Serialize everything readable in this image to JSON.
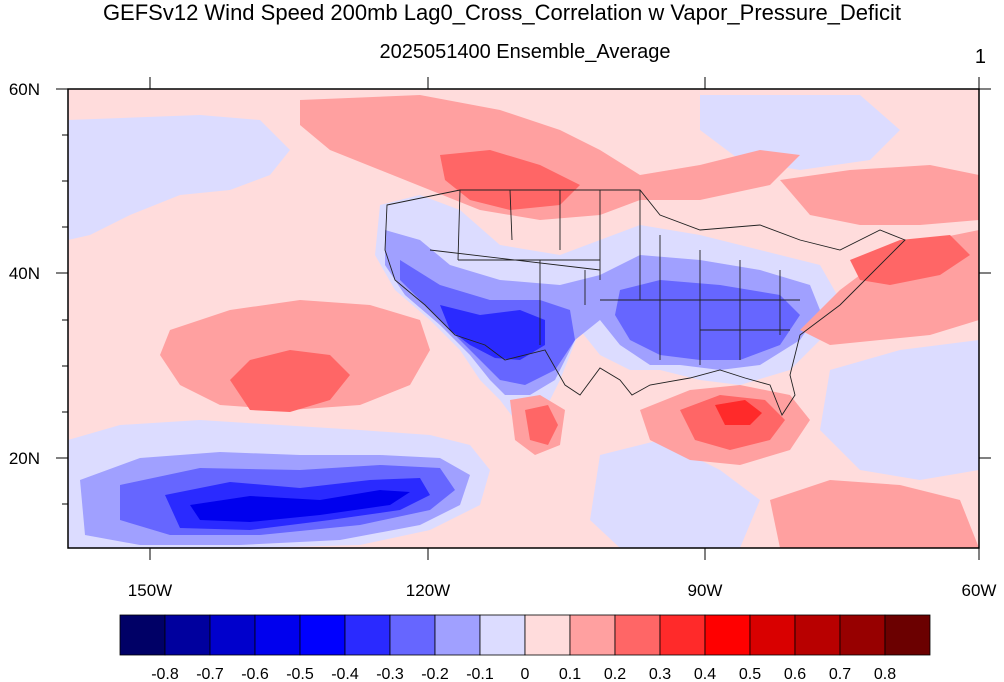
{
  "header": {
    "title": "GEFSv12 Wind Speed 200mb Lag0_Cross_Correlation w Vapor_Pressure_Deficit",
    "subtitle": "2025051400 Ensemble_Average",
    "corner_label": "1"
  },
  "axes": {
    "lat_ticks": [
      "60N",
      "40N",
      "20N"
    ],
    "lon_ticks": [
      "150W",
      "120W",
      "90W",
      "60W"
    ]
  },
  "colorbar": {
    "labels": [
      "-0.8",
      "-0.7",
      "-0.6",
      "-0.5",
      "-0.4",
      "-0.3",
      "-0.2",
      "-0.1",
      "0",
      "0.1",
      "0.2",
      "0.3",
      "0.4",
      "0.5",
      "0.6",
      "0.7",
      "0.8"
    ],
    "colors": [
      "#000066",
      "#00009e",
      "#0000cc",
      "#0000ee",
      "#0000ff",
      "#2a2aff",
      "#6666ff",
      "#a0a0ff",
      "#dcdcff",
      "#ffdcdc",
      "#ffa0a0",
      "#ff6666",
      "#ff2a2a",
      "#ff0000",
      "#d90000",
      "#b80000",
      "#970000",
      "#6b0000"
    ]
  },
  "chart_data": {
    "type": "heatmap",
    "title": "GEFSv12 Wind Speed 200mb Lag0_Cross_Correlation w Vapor_Pressure_Deficit",
    "subtitle": "2025051400 Ensemble_Average",
    "x_range": [
      "160W",
      "60W"
    ],
    "y_range": [
      "10N",
      "60N"
    ],
    "x_ticks": [
      "150W",
      "120W",
      "90W",
      "60W"
    ],
    "y_ticks": [
      "60N",
      "40N",
      "20N"
    ],
    "levels": [
      -0.8,
      -0.7,
      -0.6,
      -0.5,
      -0.4,
      -0.3,
      -0.2,
      -0.1,
      0,
      0.1,
      0.2,
      0.3,
      0.4,
      0.5,
      0.6,
      0.7,
      0.8
    ],
    "features": [
      {
        "region": "Southwest US",
        "approx_value": -0.5
      },
      {
        "region": "Subtropical eastern Pacific band",
        "approx_value": -0.5
      },
      {
        "region": "Southeast US / Ohio Valley",
        "approx_value": -0.3
      },
      {
        "region": "Gulf of Mexico",
        "approx_value": 0.45
      },
      {
        "region": "Eastern Pacific near 30N 135W",
        "approx_value": 0.3
      },
      {
        "region": "Northern Rockies / southern Canada",
        "approx_value": 0.3
      },
      {
        "region": "Western Atlantic",
        "approx_value": 0.25
      }
    ]
  }
}
